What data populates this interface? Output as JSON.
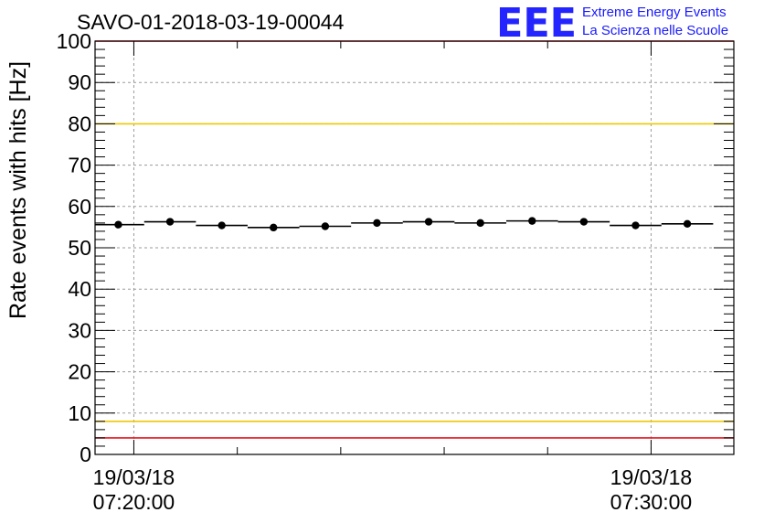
{
  "chart_data": {
    "type": "scatter",
    "title": "SAVO-01-2018-03-19-00044",
    "ylabel": "Rate events with hits [Hz]",
    "xlabel": "",
    "ylim": [
      0,
      100
    ],
    "y_ticks": [
      "0",
      "10",
      "20",
      "30",
      "40",
      "50",
      "60",
      "70",
      "80",
      "90",
      "100"
    ],
    "x_unit": "minutes after 07:20:00",
    "xlim": [
      -0.75,
      11.6
    ],
    "x_tick_labels": [
      {
        "x": 0,
        "date": "19/03/18",
        "time": "07:20:00"
      },
      {
        "x": 10,
        "date": "19/03/18",
        "time": "07:30:00"
      }
    ],
    "x_minor_ticks": [
      2,
      4,
      6,
      8
    ],
    "grid": true,
    "series": [
      {
        "name": "rate",
        "bin_width": 1,
        "x": [
          -0.3,
          0.7,
          1.7,
          2.7,
          3.7,
          4.7,
          5.7,
          6.7,
          7.7,
          8.7,
          9.7,
          10.7
        ],
        "y": [
          55.6,
          56.3,
          55.4,
          54.9,
          55.2,
          56.0,
          56.3,
          56.0,
          56.5,
          56.3,
          55.4,
          55.8
        ],
        "y_err": [
          0.4,
          0.4,
          0.4,
          0.4,
          0.4,
          0.4,
          0.4,
          0.4,
          0.4,
          0.4,
          0.4,
          0.4
        ]
      }
    ],
    "reference_lines": [
      {
        "name": "upper-red-limit",
        "y": 100,
        "color": "#e8141e"
      },
      {
        "name": "upper-yellow-limit",
        "y": 80,
        "color": "#f0c800"
      },
      {
        "name": "lower-yellow-limit",
        "y": 8,
        "color": "#f0c800"
      },
      {
        "name": "lower-red-limit",
        "y": 4,
        "color": "#e8141e"
      }
    ]
  },
  "logo": {
    "mark": "EEE",
    "line1": "Extreme Energy Events",
    "line2": "La Scienza nelle Scuole"
  },
  "colors": {
    "marker": "#000000",
    "grid": "#9a9a9a",
    "logo": "#1a1aff"
  }
}
